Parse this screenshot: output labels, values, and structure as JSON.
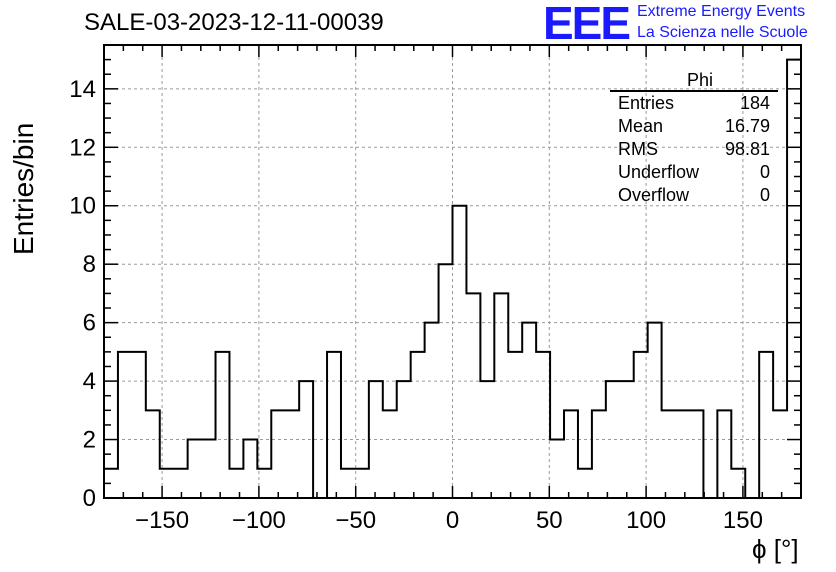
{
  "header": {
    "title": "SALE-03-2023-12-11-00039",
    "logo_mark": "EEE",
    "logo_line_1": "Extreme Energy Events",
    "logo_line_2": "La Scienza nelle Scuole"
  },
  "stats_box": {
    "title": "Phi",
    "rows": [
      {
        "label": "Entries",
        "value": "184"
      },
      {
        "label": "Mean",
        "value": "16.79"
      },
      {
        "label": "RMS",
        "value": "98.81"
      },
      {
        "label": "Underflow",
        "value": "0"
      },
      {
        "label": "Overflow",
        "value": "0"
      }
    ]
  },
  "colors": {
    "accent": "#1a1aff",
    "line": "#000000",
    "grid": "#9a9a9a"
  },
  "chart_data": {
    "type": "bar",
    "histogram": true,
    "xlabel": "ϕ [°]",
    "ylabel": "Entries/bin",
    "xlim": [
      -180,
      180
    ],
    "ylim": [
      0,
      15.5
    ],
    "x_ticks": [
      -150,
      -100,
      -50,
      0,
      50,
      100,
      150
    ],
    "x_tick_labels": [
      "−150",
      "−100",
      "−50",
      "0",
      "50",
      "100",
      "150"
    ],
    "y_ticks": [
      0,
      2,
      4,
      6,
      8,
      10,
      12,
      14
    ],
    "y_tick_labels": [
      "0",
      "2",
      "4",
      "6",
      "8",
      "10",
      "12",
      "14"
    ],
    "grid": true,
    "bin_width": 7.2,
    "values": [
      1,
      5,
      5,
      3,
      1,
      1,
      2,
      2,
      5,
      1,
      2,
      1,
      3,
      3,
      4,
      0,
      5,
      1,
      1,
      4,
      3,
      4,
      5,
      6,
      8,
      10,
      7,
      4,
      7,
      5,
      6,
      5,
      2,
      3,
      1,
      3,
      4,
      4,
      5,
      6,
      3,
      3,
      3,
      0,
      3,
      1,
      0,
      5,
      3,
      15
    ]
  }
}
